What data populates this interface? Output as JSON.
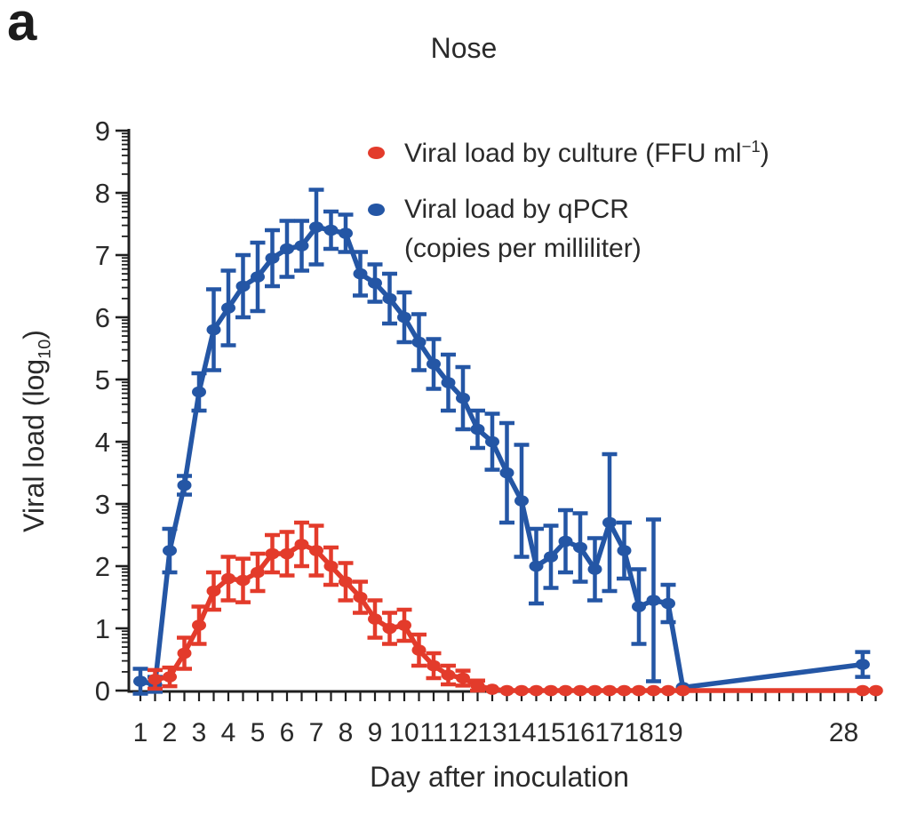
{
  "panel_label": "a",
  "labels": {
    "ylabel_pre": "Viral load (log",
    "ylabel_sub": "10",
    "ylabel_post": ")"
  },
  "legend": {
    "culture_pre": "Viral load by culture (FFU ml",
    "culture_sup": "−1",
    "culture_post": ")",
    "qpcr_line1": "Viral load by qPCR",
    "qpcr_line2": "(copies per milliliter)"
  },
  "colors": {
    "culture_red": "#e33b2b",
    "qpcr_blue": "#2456a5",
    "axis": "#1f1f1f",
    "text": "#2a2a2a"
  },
  "chart_data": {
    "type": "line",
    "title": "Nose",
    "xlabel": "Day after inoculation",
    "ylabel": "Viral load (log10)",
    "ylim": [
      0,
      9
    ],
    "y_tick_labels": [
      "0",
      "1",
      "2",
      "3",
      "4",
      "5",
      "6",
      "7",
      "8",
      "9"
    ],
    "y_minor_ticks": "logarithmic (log10 of 2..9 within each unit decade)",
    "x_tick_days": [
      1,
      2,
      3,
      4,
      5,
      6,
      7,
      8,
      9,
      10,
      11,
      12,
      13,
      14,
      15,
      16,
      17,
      18,
      19,
      28
    ],
    "x_minor_tick_interval_days": 0.5,
    "x_axis_compressed_after_day": 19.5,
    "grid": false,
    "legend_position": "upper right inside",
    "error_bars": true,
    "series": [
      {
        "name": "Viral load by culture (FFU ml−1)",
        "color": "#e33b2b",
        "marker": "filled-ellipse",
        "points": [
          [
            1.5,
            0.18,
            0.15
          ],
          [
            2,
            0.22,
            0.15
          ],
          [
            2.5,
            0.6,
            0.25
          ],
          [
            3,
            1.05,
            0.3
          ],
          [
            3.5,
            1.6,
            0.3
          ],
          [
            4,
            1.8,
            0.35
          ],
          [
            4.5,
            1.77,
            0.35
          ],
          [
            5,
            1.9,
            0.3
          ],
          [
            5.5,
            2.2,
            0.3
          ],
          [
            6,
            2.2,
            0.35
          ],
          [
            6.5,
            2.35,
            0.35
          ],
          [
            7,
            2.25,
            0.4
          ],
          [
            7.5,
            2.0,
            0.3
          ],
          [
            8,
            1.75,
            0.3
          ],
          [
            8.5,
            1.5,
            0.25
          ],
          [
            9,
            1.15,
            0.3
          ],
          [
            9.5,
            1.0,
            0.25
          ],
          [
            10,
            1.05,
            0.25
          ],
          [
            10.5,
            0.65,
            0.25
          ],
          [
            11,
            0.4,
            0.2
          ],
          [
            11.5,
            0.25,
            0.15
          ],
          [
            12,
            0.2,
            0.12
          ],
          [
            12.5,
            0.08,
            0.08
          ],
          [
            13,
            0.02,
            0
          ],
          [
            13.5,
            0,
            0
          ],
          [
            14,
            0,
            0
          ],
          [
            14.5,
            0,
            0
          ],
          [
            15,
            0,
            0
          ],
          [
            15.5,
            0,
            0
          ],
          [
            16,
            0,
            0
          ],
          [
            16.5,
            0,
            0
          ],
          [
            17,
            0,
            0
          ],
          [
            17.5,
            0,
            0
          ],
          [
            18,
            0,
            0
          ],
          [
            18.5,
            0,
            0
          ],
          [
            19,
            0,
            0
          ],
          [
            19.5,
            0,
            0
          ],
          [
            29,
            0,
            0
          ],
          [
            29.7,
            0,
            0
          ]
        ]
      },
      {
        "name": "Viral load by qPCR (copies per milliliter)",
        "color": "#2456a5",
        "marker": "filled-ellipse",
        "points": [
          [
            1,
            0.15,
            0.2
          ],
          [
            1.5,
            0.1,
            0.12
          ],
          [
            2,
            2.25,
            0.35
          ],
          [
            2.5,
            3.3,
            0.15
          ],
          [
            3,
            4.8,
            0.3
          ],
          [
            3.5,
            5.8,
            0.65
          ],
          [
            4,
            6.15,
            0.6
          ],
          [
            4.5,
            6.5,
            0.5
          ],
          [
            5,
            6.65,
            0.55
          ],
          [
            5.5,
            6.95,
            0.45
          ],
          [
            6,
            7.1,
            0.45
          ],
          [
            6.5,
            7.15,
            0.4
          ],
          [
            7,
            7.45,
            0.6
          ],
          [
            7.5,
            7.4,
            0.3
          ],
          [
            8,
            7.35,
            0.3
          ],
          [
            8.5,
            6.7,
            0.35
          ],
          [
            9,
            6.55,
            0.3
          ],
          [
            9.5,
            6.3,
            0.4
          ],
          [
            10,
            6.0,
            0.4
          ],
          [
            10.5,
            5.6,
            0.45
          ],
          [
            11,
            5.25,
            0.4
          ],
          [
            11.5,
            4.95,
            0.45
          ],
          [
            12,
            4.7,
            0.5
          ],
          [
            12.5,
            4.2,
            0.3
          ],
          [
            13,
            4.0,
            0.45
          ],
          [
            13.5,
            3.5,
            0.8
          ],
          [
            14,
            3.05,
            0.9
          ],
          [
            14.5,
            2.0,
            0.6
          ],
          [
            15,
            2.15,
            0.5
          ],
          [
            15.5,
            2.4,
            0.5
          ],
          [
            16,
            2.3,
            0.55
          ],
          [
            16.5,
            1.95,
            0.5
          ],
          [
            17,
            2.7,
            1.1
          ],
          [
            17.5,
            2.25,
            0.45
          ],
          [
            18,
            1.35,
            0.6
          ],
          [
            18.5,
            1.45,
            1.3
          ],
          [
            19,
            1.4,
            0.3
          ],
          [
            19.5,
            0.05,
            0
          ],
          [
            29,
            0.42,
            0.2
          ]
        ]
      }
    ]
  }
}
